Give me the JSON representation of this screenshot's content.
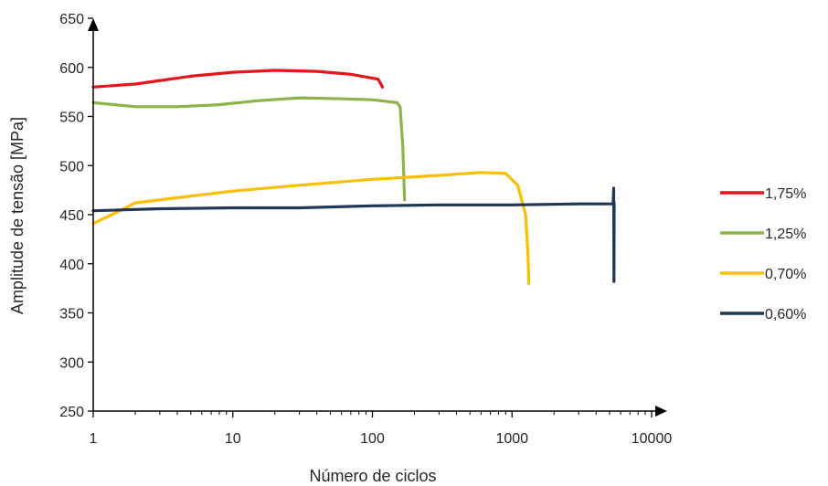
{
  "chart_data": {
    "type": "line",
    "title": "",
    "xlabel": "Número de ciclos",
    "ylabel": "Amplitude de tensão [MPa]",
    "xscale": "log",
    "xlim": [
      1,
      10000
    ],
    "ylim": [
      250,
      650
    ],
    "xticks": [
      "1",
      "10",
      "100",
      "1000",
      "10000"
    ],
    "yticks": [
      "250",
      "300",
      "350",
      "400",
      "450",
      "500",
      "550",
      "600",
      "650"
    ],
    "grid": false,
    "legend_position": "right",
    "series": [
      {
        "name": "1,75%",
        "color": "#e8141b",
        "points": [
          [
            1,
            580
          ],
          [
            2,
            583
          ],
          [
            5,
            591
          ],
          [
            10,
            595
          ],
          [
            20,
            597
          ],
          [
            40,
            596
          ],
          [
            70,
            593
          ],
          [
            110,
            588
          ],
          [
            118,
            580
          ]
        ]
      },
      {
        "name": "1,25%",
        "color": "#8cb44b",
        "points": [
          [
            1,
            564
          ],
          [
            2,
            560
          ],
          [
            4,
            560
          ],
          [
            8,
            562
          ],
          [
            15,
            566
          ],
          [
            30,
            569
          ],
          [
            60,
            568
          ],
          [
            100,
            567
          ],
          [
            150,
            564
          ],
          [
            158,
            560
          ],
          [
            165,
            520
          ],
          [
            170,
            465
          ]
        ]
      },
      {
        "name": "0,70%",
        "color": "#f9bf00",
        "points": [
          [
            1,
            441
          ],
          [
            1.5,
            453
          ],
          [
            2,
            462
          ],
          [
            5,
            469
          ],
          [
            10,
            474
          ],
          [
            30,
            480
          ],
          [
            100,
            486
          ],
          [
            300,
            490
          ],
          [
            600,
            493
          ],
          [
            900,
            492
          ],
          [
            1100,
            480
          ],
          [
            1250,
            450
          ],
          [
            1300,
            410
          ],
          [
            1320,
            380
          ]
        ]
      },
      {
        "name": "0,60%",
        "color": "#1f3655",
        "points": [
          [
            1,
            454
          ],
          [
            3,
            456
          ],
          [
            10,
            457
          ],
          [
            30,
            457
          ],
          [
            100,
            459
          ],
          [
            300,
            460
          ],
          [
            1000,
            460
          ],
          [
            3000,
            461
          ],
          [
            5300,
            461
          ],
          [
            5350,
            477
          ],
          [
            5370,
            382
          ],
          [
            5390,
            462
          ]
        ]
      }
    ]
  }
}
